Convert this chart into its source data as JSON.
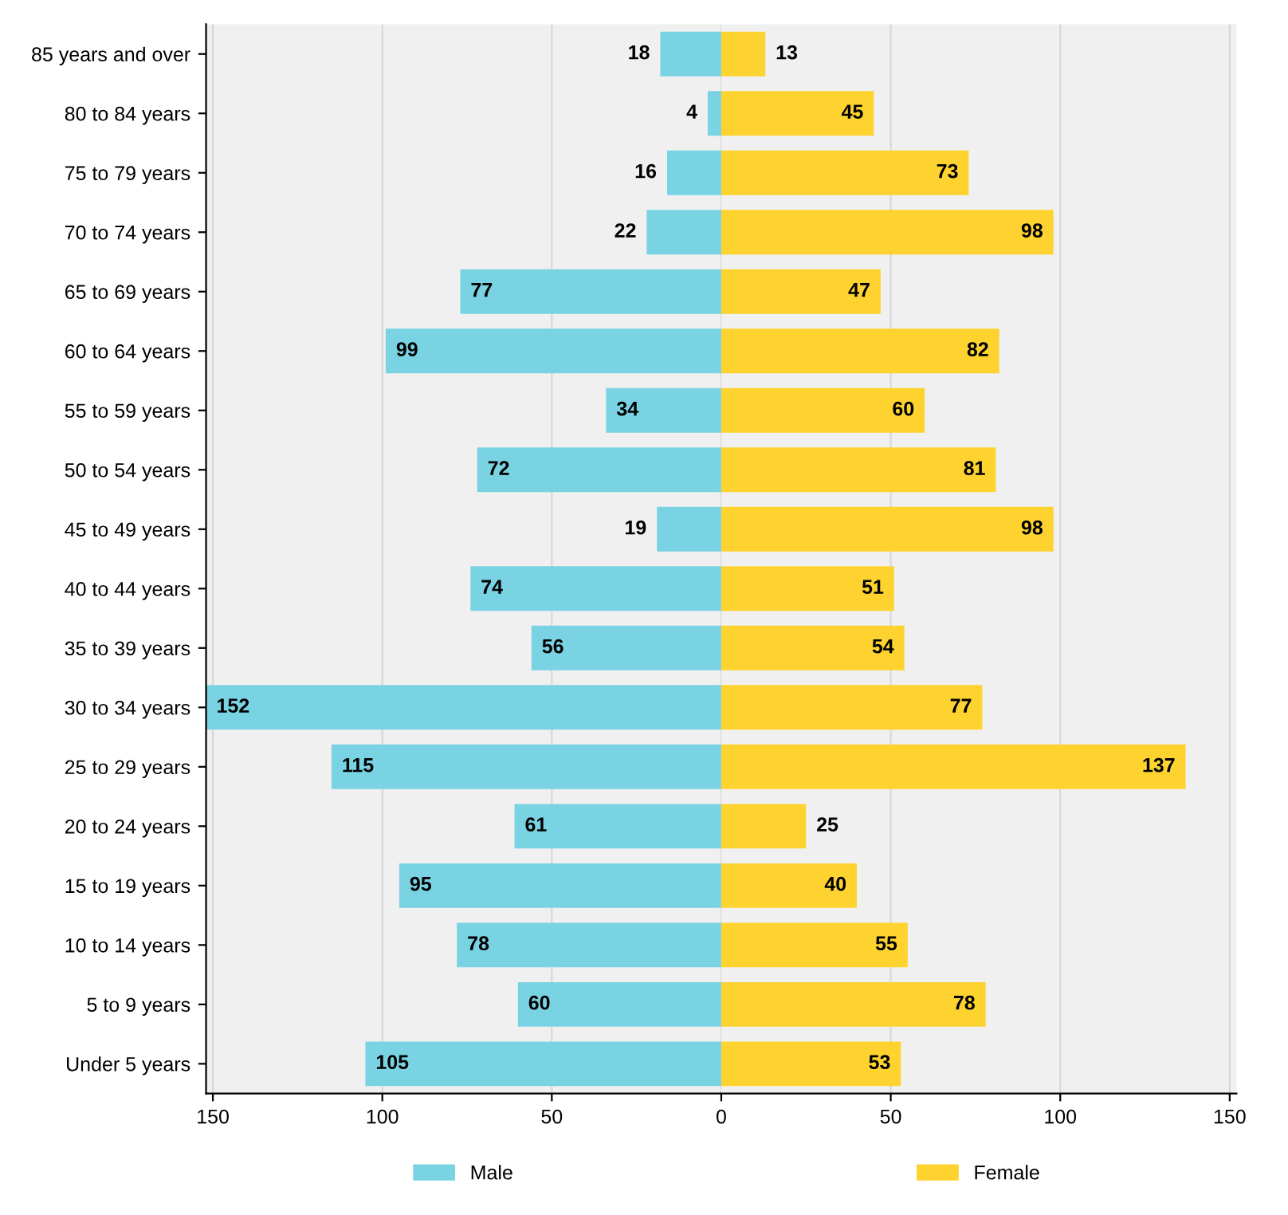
{
  "chart_data": [
    {
      "type": "bar",
      "orientation": "horizontal",
      "categories": [
        "85 years and over",
        "80 to 84 years",
        "75 to 79 years",
        "70 to 74 years",
        "65 to 69 years",
        "60 to 64 years",
        "55 to 59 years",
        "50 to 54 years",
        "45 to 49 years",
        "40 to 44 years",
        "35 to 39 years",
        "30 to 34 years",
        "25 to 29 years",
        "20 to 24 years",
        "15 to 19 years",
        "10 to 14 years",
        "5 to 9 years",
        "Under 5 years"
      ],
      "series": [
        {
          "name": "Male",
          "color": "#79d3e3",
          "values": [
            18,
            4,
            16,
            22,
            77,
            99,
            34,
            72,
            19,
            74,
            56,
            152,
            115,
            61,
            95,
            78,
            60,
            105
          ]
        }
      ],
      "data_labels": true,
      "xlim": [
        152,
        0
      ],
      "xticks": [
        150,
        100,
        50,
        0
      ],
      "grid": "x",
      "legend": "bottom"
    },
    {
      "type": "bar",
      "orientation": "horizontal",
      "categories": [
        null,
        null,
        null,
        null,
        null,
        null,
        null,
        null,
        null,
        null,
        null,
        null,
        null,
        null,
        null,
        null,
        null,
        null
      ],
      "series": [
        {
          "name": "Female",
          "color": "#fed330",
          "values": [
            13,
            45,
            73,
            98,
            47,
            82,
            60,
            81,
            98,
            51,
            54,
            77,
            137,
            25,
            40,
            55,
            78,
            53
          ]
        }
      ],
      "data_labels": true,
      "xlim": [
        0,
        152
      ],
      "xticks": [
        50,
        100,
        150
      ],
      "grid": "x",
      "legend": "bottom",
      "tick_labels": "x"
    }
  ]
}
